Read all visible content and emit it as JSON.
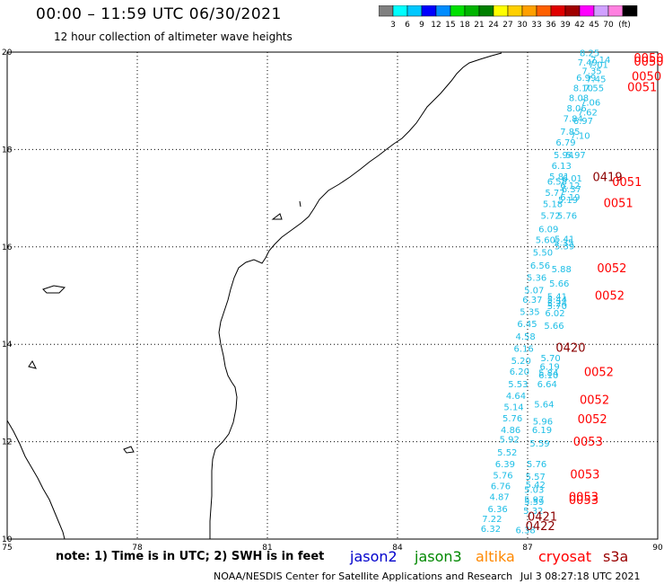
{
  "header": {
    "title": "00:00 – 11:59 UTC 06/30/2021",
    "subtitle": "12 hour collection of altimeter wave heights"
  },
  "colorbar": {
    "colors": [
      "#808080",
      "#00ffff",
      "#00c8ff",
      "#0000ff",
      "#008cff",
      "#00e000",
      "#00b400",
      "#008000",
      "#ffff00",
      "#ffd000",
      "#ffa000",
      "#ff6000",
      "#e00000",
      "#a00000",
      "#ff00ff",
      "#d0a0ff",
      "#ff80e0",
      "#000000"
    ],
    "labels": [
      "3",
      "6",
      "9",
      "12",
      "15",
      "18",
      "21",
      "24",
      "27",
      "30",
      "33",
      "36",
      "39",
      "42",
      "45",
      "70"
    ],
    "unit": "(ft)"
  },
  "map": {
    "lon_ticks": [
      "75",
      "78",
      "81",
      "84",
      "87",
      "90"
    ],
    "lat_ticks": [
      "20",
      "18",
      "16",
      "14",
      "12",
      "10"
    ],
    "swh_color": "#1ebee6",
    "pass_color": "#ff0000",
    "pass_color_dark": "#8b0000",
    "swh_labels": [
      {
        "t": "8.25",
        "lon": 88.2,
        "lat": 19.92
      },
      {
        "t": "7.14",
        "lon": 88.45,
        "lat": 19.78
      },
      {
        "t": "7.49",
        "lon": 88.15,
        "lat": 19.72
      },
      {
        "t": "7.01",
        "lon": 88.4,
        "lat": 19.68
      },
      {
        "t": "7.35",
        "lon": 88.25,
        "lat": 19.55
      },
      {
        "t": "6.99",
        "lon": 88.12,
        "lat": 19.41
      },
      {
        "t": "7.45",
        "lon": 88.35,
        "lat": 19.38
      },
      {
        "t": "8.10",
        "lon": 88.05,
        "lat": 19.2
      },
      {
        "t": "7.55",
        "lon": 88.3,
        "lat": 19.2
      },
      {
        "t": "8.08",
        "lon": 87.95,
        "lat": 18.99
      },
      {
        "t": "7.06",
        "lon": 88.22,
        "lat": 18.9
      },
      {
        "t": "8.06",
        "lon": 87.9,
        "lat": 18.78
      },
      {
        "t": "7.62",
        "lon": 88.15,
        "lat": 18.7
      },
      {
        "t": "7.84",
        "lon": 87.82,
        "lat": 18.57
      },
      {
        "t": "6.97",
        "lon": 88.05,
        "lat": 18.52
      },
      {
        "t": "7.85",
        "lon": 87.75,
        "lat": 18.3
      },
      {
        "t": "7.10",
        "lon": 87.98,
        "lat": 18.22
      },
      {
        "t": "6.79",
        "lon": 87.65,
        "lat": 18.08
      },
      {
        "t": "5.94",
        "lon": 87.6,
        "lat": 17.82
      },
      {
        "t": "5.97",
        "lon": 87.88,
        "lat": 17.82
      },
      {
        "t": "6.13",
        "lon": 87.55,
        "lat": 17.6
      },
      {
        "t": "5.81",
        "lon": 87.5,
        "lat": 17.38
      },
      {
        "t": "6.01",
        "lon": 87.8,
        "lat": 17.34
      },
      {
        "t": "6.58",
        "lon": 87.45,
        "lat": 17.28
      },
      {
        "t": "6.12",
        "lon": 87.75,
        "lat": 17.2
      },
      {
        "t": "6.37",
        "lon": 87.78,
        "lat": 17.12
      },
      {
        "t": "5.77",
        "lon": 87.4,
        "lat": 17.05
      },
      {
        "t": "6.19",
        "lon": 87.75,
        "lat": 16.96
      },
      {
        "t": "5.19",
        "lon": 87.7,
        "lat": 16.9
      },
      {
        "t": "5.18",
        "lon": 87.35,
        "lat": 16.82
      },
      {
        "t": "5.72",
        "lon": 87.3,
        "lat": 16.58
      },
      {
        "t": "5.76",
        "lon": 87.68,
        "lat": 16.58
      },
      {
        "t": "6.09",
        "lon": 87.25,
        "lat": 16.3
      },
      {
        "t": "5.60",
        "lon": 87.18,
        "lat": 16.08
      },
      {
        "t": "5.41",
        "lon": 87.62,
        "lat": 16.1
      },
      {
        "t": "5.35",
        "lon": 87.6,
        "lat": 16.02
      },
      {
        "t": "5.39",
        "lon": 87.62,
        "lat": 15.95
      },
      {
        "t": "5.50",
        "lon": 87.12,
        "lat": 15.82
      },
      {
        "t": "6.56",
        "lon": 87.06,
        "lat": 15.55
      },
      {
        "t": "5.88",
        "lon": 87.55,
        "lat": 15.48
      },
      {
        "t": "5.36",
        "lon": 86.98,
        "lat": 15.3
      },
      {
        "t": "5.66",
        "lon": 87.5,
        "lat": 15.18
      },
      {
        "t": "5.07",
        "lon": 86.92,
        "lat": 15.05
      },
      {
        "t": "5.41",
        "lon": 87.45,
        "lat": 14.92
      },
      {
        "t": "6.37",
        "lon": 86.88,
        "lat": 14.85
      },
      {
        "t": "5.44",
        "lon": 87.45,
        "lat": 14.85
      },
      {
        "t": "5.24",
        "lon": 87.45,
        "lat": 14.78
      },
      {
        "t": "5.70",
        "lon": 87.45,
        "lat": 14.72
      },
      {
        "t": "5.35",
        "lon": 86.82,
        "lat": 14.6
      },
      {
        "t": "6.02",
        "lon": 87.4,
        "lat": 14.58
      },
      {
        "t": "6.45",
        "lon": 86.76,
        "lat": 14.35
      },
      {
        "t": "5.66",
        "lon": 87.38,
        "lat": 14.32
      },
      {
        "t": "4.58",
        "lon": 86.72,
        "lat": 14.1
      },
      {
        "t": "6.16",
        "lon": 86.68,
        "lat": 13.85
      },
      {
        "t": "5.70",
        "lon": 87.3,
        "lat": 13.65
      },
      {
        "t": "5.20",
        "lon": 86.62,
        "lat": 13.6
      },
      {
        "t": "6.19",
        "lon": 87.28,
        "lat": 13.48
      },
      {
        "t": "6.20",
        "lon": 86.58,
        "lat": 13.38
      },
      {
        "t": "5.84",
        "lon": 87.25,
        "lat": 13.35
      },
      {
        "t": "6.10",
        "lon": 87.25,
        "lat": 13.3
      },
      {
        "t": "5.53",
        "lon": 86.55,
        "lat": 13.12
      },
      {
        "t": "6.64",
        "lon": 87.22,
        "lat": 13.12
      },
      {
        "t": "4.64",
        "lon": 86.5,
        "lat": 12.88
      },
      {
        "t": "5.14",
        "lon": 86.45,
        "lat": 12.65
      },
      {
        "t": "5.64",
        "lon": 87.15,
        "lat": 12.7
      },
      {
        "t": "5.76",
        "lon": 86.42,
        "lat": 12.42
      },
      {
        "t": "5.96",
        "lon": 87.12,
        "lat": 12.35
      },
      {
        "t": "4.86",
        "lon": 86.38,
        "lat": 12.18
      },
      {
        "t": "6.19",
        "lon": 87.1,
        "lat": 12.18
      },
      {
        "t": "5.92",
        "lon": 86.35,
        "lat": 11.98
      },
      {
        "t": "5.59",
        "lon": 87.05,
        "lat": 11.9
      },
      {
        "t": "5.52",
        "lon": 86.3,
        "lat": 11.72
      },
      {
        "t": "6.39",
        "lon": 86.25,
        "lat": 11.48
      },
      {
        "t": "5.76",
        "lon": 86.98,
        "lat": 11.48
      },
      {
        "t": "5.76",
        "lon": 86.2,
        "lat": 11.25
      },
      {
        "t": "5.57",
        "lon": 86.95,
        "lat": 11.22
      },
      {
        "t": "6.76",
        "lon": 86.15,
        "lat": 11.02
      },
      {
        "t": "5.42",
        "lon": 86.95,
        "lat": 11.05
      },
      {
        "t": "5.03",
        "lon": 86.92,
        "lat": 10.95
      },
      {
        "t": "4.87",
        "lon": 86.12,
        "lat": 10.8
      },
      {
        "t": "5.97",
        "lon": 86.92,
        "lat": 10.75
      },
      {
        "t": "5.59",
        "lon": 86.92,
        "lat": 10.7
      },
      {
        "t": "6.36",
        "lon": 86.08,
        "lat": 10.55
      },
      {
        "t": "5.32",
        "lon": 86.9,
        "lat": 10.52
      },
      {
        "t": "7.22",
        "lon": 85.95,
        "lat": 10.35
      },
      {
        "t": "6.32",
        "lon": 85.92,
        "lat": 10.15
      },
      {
        "t": "6.38",
        "lon": 86.72,
        "lat": 10.12
      }
    ],
    "pass_labels": [
      {
        "t": "0050",
        "lon": 89.45,
        "lat": 19.8,
        "dark": false
      },
      {
        "t": "0050",
        "lon": 89.45,
        "lat": 19.72,
        "dark": false
      },
      {
        "t": "0050",
        "lon": 89.4,
        "lat": 19.42,
        "dark": false
      },
      {
        "t": "0051",
        "lon": 89.3,
        "lat": 19.2,
        "dark": false
      },
      {
        "t": "0419",
        "lon": 88.5,
        "lat": 17.35,
        "dark": true
      },
      {
        "t": "0051",
        "lon": 88.95,
        "lat": 17.25,
        "dark": false
      },
      {
        "t": "0051",
        "lon": 88.75,
        "lat": 16.82,
        "dark": false
      },
      {
        "t": "0052",
        "lon": 88.6,
        "lat": 15.48,
        "dark": false
      },
      {
        "t": "0052",
        "lon": 88.55,
        "lat": 14.92,
        "dark": false
      },
      {
        "t": "0420",
        "lon": 87.65,
        "lat": 13.85,
        "dark": true
      },
      {
        "t": "0052",
        "lon": 88.3,
        "lat": 13.35,
        "dark": false
      },
      {
        "t": "0052",
        "lon": 88.2,
        "lat": 12.78,
        "dark": false
      },
      {
        "t": "0052",
        "lon": 88.15,
        "lat": 12.38,
        "dark": false
      },
      {
        "t": "0053",
        "lon": 88.05,
        "lat": 11.92,
        "dark": false
      },
      {
        "t": "0053",
        "lon": 87.98,
        "lat": 11.25,
        "dark": false
      },
      {
        "t": "0053",
        "lon": 87.95,
        "lat": 10.78,
        "dark": false
      },
      {
        "t": "0053",
        "lon": 87.95,
        "lat": 10.72,
        "dark": false
      },
      {
        "t": "0421",
        "lon": 87.0,
        "lat": 10.38,
        "dark": true
      },
      {
        "t": "0422",
        "lon": 86.95,
        "lat": 10.18,
        "dark": true
      }
    ]
  },
  "footer": {
    "note": "note: 1) Time is in UTC; 2) SWH is in feet",
    "satellites": [
      {
        "name": "jason2",
        "color": "#0000cc"
      },
      {
        "name": "jason3",
        "color": "#008800"
      },
      {
        "name": "altika",
        "color": "#ff8800"
      },
      {
        "name": "cryosat",
        "color": "#ff0000"
      },
      {
        "name": "s3a",
        "color": "#990000"
      }
    ],
    "credit": "NOAA/NESDIS Center for Satellite Applications and Research",
    "generated": "Jul  3 08:27:18 UTC 2021"
  }
}
